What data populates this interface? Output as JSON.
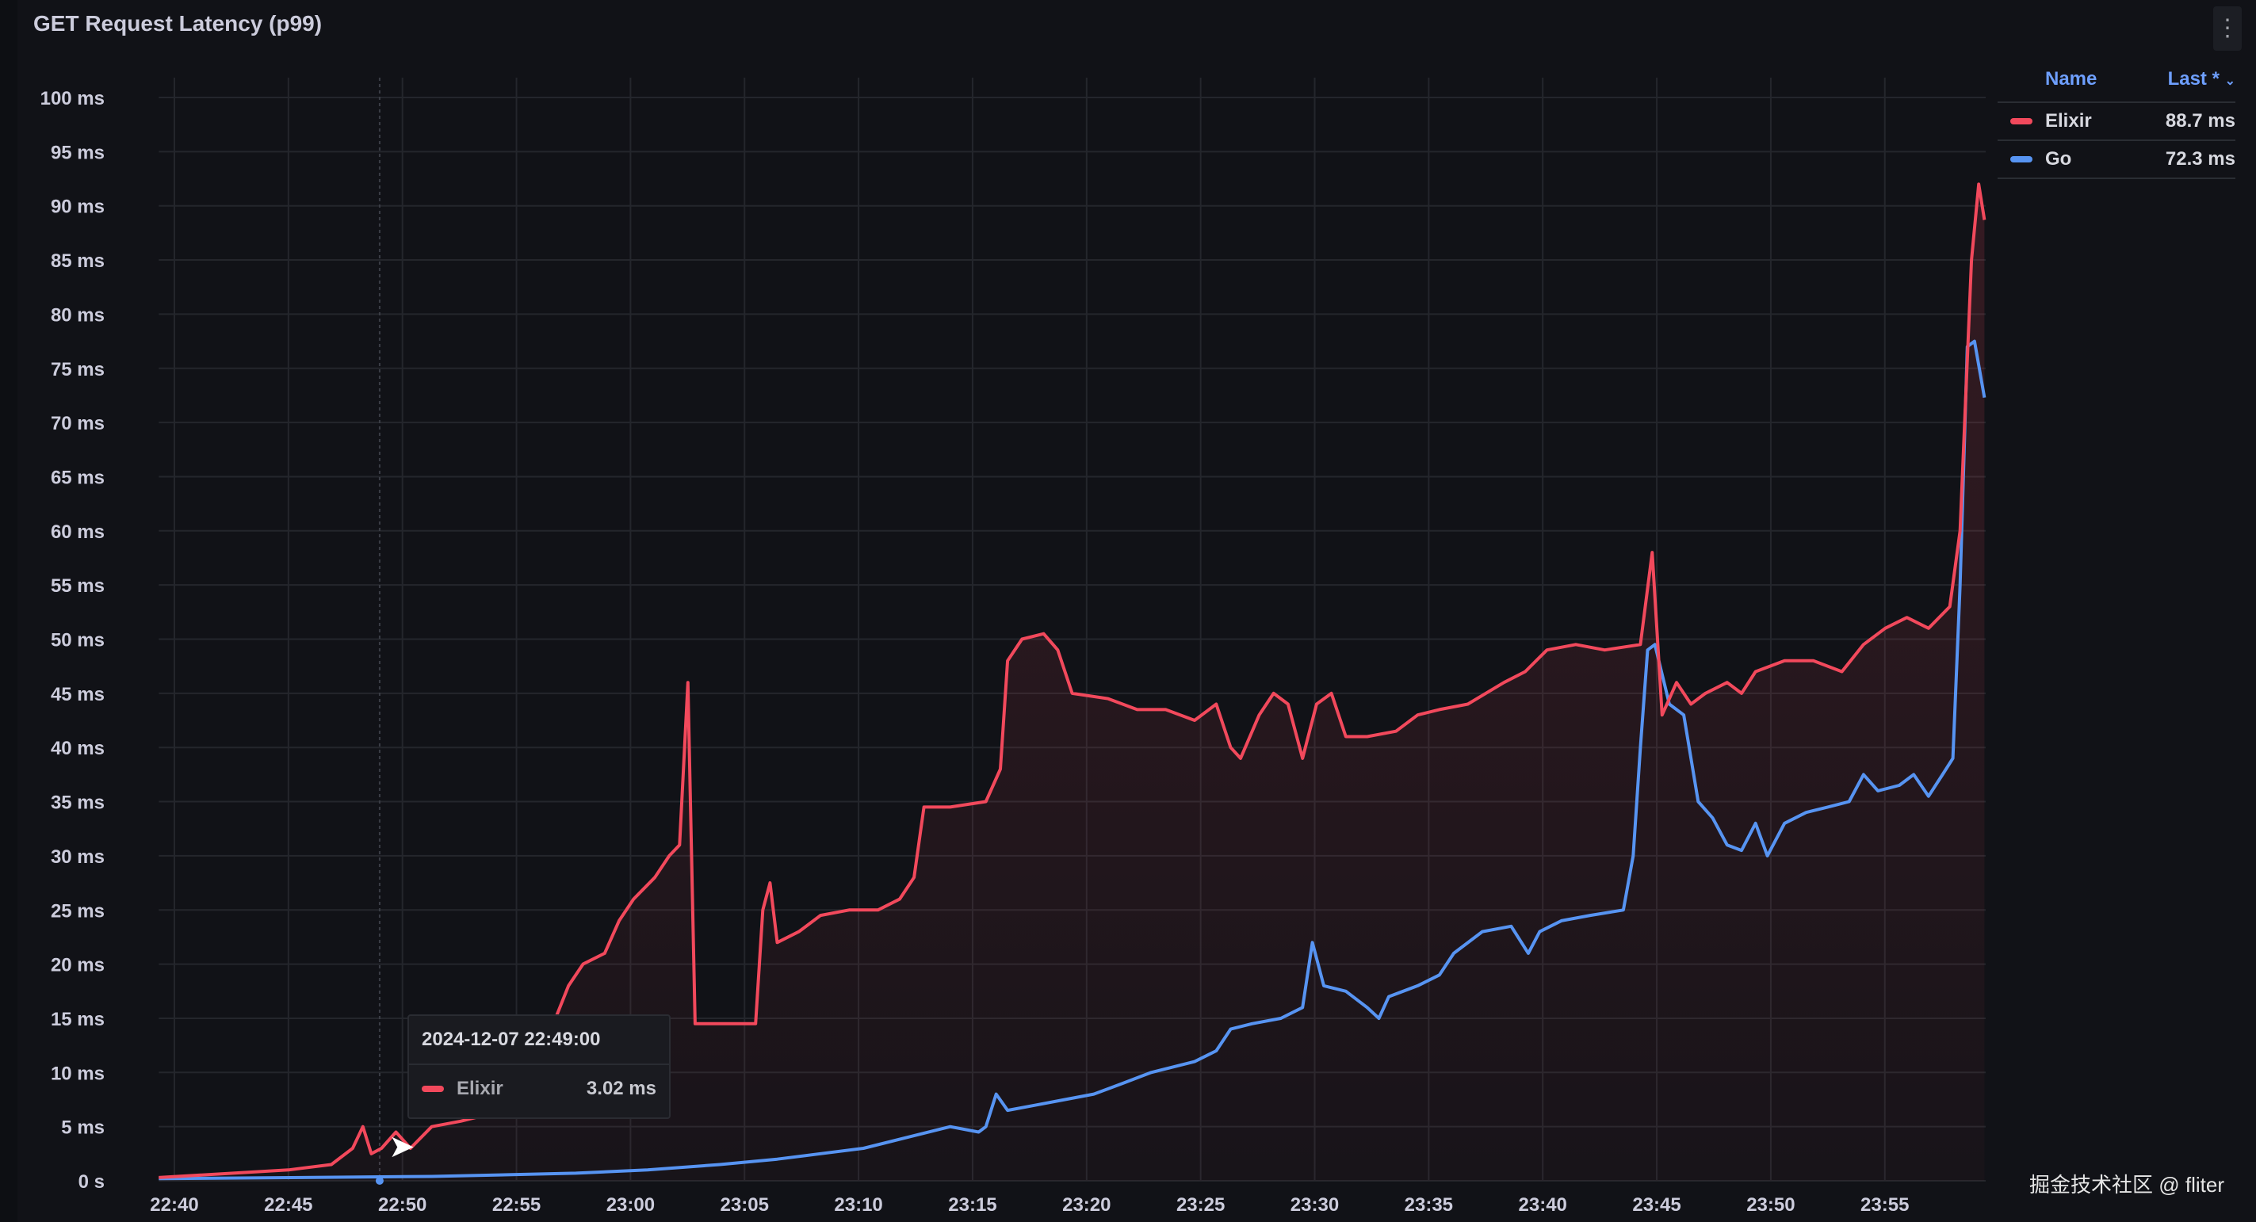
{
  "panel": {
    "title": "GET Request Latency (p99)",
    "menu_icon": "kebab-menu-icon"
  },
  "legend": {
    "header_name": "Name",
    "header_last": "Last *",
    "sort_icon": "chevron-down-icon",
    "rows": [
      {
        "name": "Elixir",
        "value": "88.7 ms",
        "color": "#f2495c"
      },
      {
        "name": "Go",
        "value": "72.3 ms",
        "color": "#5794f2"
      }
    ]
  },
  "tooltip": {
    "time": "2024-12-07 22:49:00",
    "series": "Elixir",
    "value": "3.02 ms",
    "color": "#f2495c"
  },
  "watermark": "掘金技术社区 @ fliter",
  "chart_data": {
    "type": "line",
    "title": "GET Request Latency (p99)",
    "xlabel": "",
    "ylabel": "",
    "x_ticks": [
      "22:40",
      "22:45",
      "22:50",
      "22:55",
      "23:00",
      "23:05",
      "23:10",
      "23:15",
      "23:20",
      "23:25",
      "23:30",
      "23:35",
      "23:40",
      "23:45",
      "23:50",
      "23:55"
    ],
    "y_ticks": [
      "0 s",
      "5 ms",
      "10 ms",
      "15 ms",
      "20 ms",
      "25 ms",
      "30 ms",
      "35 ms",
      "40 ms",
      "45 ms",
      "50 ms",
      "55 ms",
      "60 ms",
      "65 ms",
      "70 ms",
      "75 ms",
      "80 ms",
      "85 ms",
      "90 ms",
      "95 ms",
      "100 ms"
    ],
    "ylim": [
      0,
      100
    ],
    "xlim": [
      "22:39:19",
      "23:59:22"
    ],
    "grid": true,
    "legend_placement": "right",
    "crosshair_time": "22:49:00",
    "series": [
      {
        "name": "Elixir",
        "color": "#f2495c",
        "fill": true,
        "points": [
          [
            "22:39:19",
            0.3
          ],
          [
            "22:45:00",
            1
          ],
          [
            "22:46:53",
            1.5
          ],
          [
            "22:47:49",
            3
          ],
          [
            "22:48:16",
            5
          ],
          [
            "22:48:38",
            2.5
          ],
          [
            "22:49:05",
            3
          ],
          [
            "22:49:43",
            4.5
          ],
          [
            "22:50:21",
            3
          ],
          [
            "22:51:17",
            5
          ],
          [
            "22:52:33",
            5.5
          ],
          [
            "22:53:30",
            6
          ],
          [
            "22:54:08",
            8
          ],
          [
            "22:55:05",
            11
          ],
          [
            "22:56:20",
            13
          ],
          [
            "22:57:17",
            18
          ],
          [
            "22:57:55",
            20
          ],
          [
            "22:58:52",
            21
          ],
          [
            "22:59:30",
            24
          ],
          [
            "23:00:08",
            26
          ],
          [
            "23:01:04",
            28
          ],
          [
            "23:01:42",
            30
          ],
          [
            "23:02:09",
            31
          ],
          [
            "23:02:31",
            46
          ],
          [
            "23:02:50",
            14.5
          ],
          [
            "23:03:55",
            14.5
          ],
          [
            "23:05:29",
            14.5
          ],
          [
            "23:05:48",
            25
          ],
          [
            "23:06:07",
            27.5
          ],
          [
            "23:06:26",
            22
          ],
          [
            "23:07:23",
            23
          ],
          [
            "23:08:20",
            24.5
          ],
          [
            "23:09:35",
            25
          ],
          [
            "23:10:51",
            25
          ],
          [
            "23:11:48",
            26
          ],
          [
            "23:12:26",
            28
          ],
          [
            "23:12:52",
            34.5
          ],
          [
            "23:14:01",
            34.5
          ],
          [
            "23:15:35",
            35
          ],
          [
            "23:16:13",
            38
          ],
          [
            "23:16:32",
            48
          ],
          [
            "23:17:10",
            50
          ],
          [
            "23:18:07",
            50.5
          ],
          [
            "23:18:44",
            49
          ],
          [
            "23:19:22",
            45
          ],
          [
            "23:20:57",
            44.5
          ],
          [
            "23:22:13",
            43.5
          ],
          [
            "23:23:28",
            43.5
          ],
          [
            "23:24:44",
            42.5
          ],
          [
            "23:25:41",
            44
          ],
          [
            "23:26:19",
            40
          ],
          [
            "23:26:45",
            39
          ],
          [
            "23:27:34",
            43
          ],
          [
            "23:28:12",
            45
          ],
          [
            "23:28:50",
            44
          ],
          [
            "23:29:28",
            39
          ],
          [
            "23:30:05",
            44
          ],
          [
            "23:30:44",
            45
          ],
          [
            "23:31:22",
            41
          ],
          [
            "23:32:18",
            41
          ],
          [
            "23:33:34",
            41.5
          ],
          [
            "23:34:31",
            43
          ],
          [
            "23:35:28",
            43.5
          ],
          [
            "23:36:43",
            44
          ],
          [
            "23:38:18",
            46
          ],
          [
            "23:39:14",
            47
          ],
          [
            "23:40:11",
            49
          ],
          [
            "23:41:27",
            49.5
          ],
          [
            "23:42:43",
            49
          ],
          [
            "23:44:17",
            49.5
          ],
          [
            "23:44:48",
            58
          ],
          [
            "23:45:14",
            43
          ],
          [
            "23:45:52",
            46
          ],
          [
            "23:46:30",
            44
          ],
          [
            "23:47:08",
            45
          ],
          [
            "23:48:05",
            46
          ],
          [
            "23:48:43",
            45
          ],
          [
            "23:49:20",
            47
          ],
          [
            "23:50:36",
            48
          ],
          [
            "23:51:52",
            48
          ],
          [
            "23:53:07",
            47
          ],
          [
            "23:54:04",
            49.5
          ],
          [
            "23:55:01",
            51
          ],
          [
            "23:55:58",
            52
          ],
          [
            "23:56:55",
            51
          ],
          [
            "23:57:51",
            53
          ],
          [
            "23:58:18",
            60
          ],
          [
            "23:58:48",
            85
          ],
          [
            "23:59:07",
            92
          ],
          [
            "23:59:22",
            88.7
          ]
        ]
      },
      {
        "name": "Go",
        "color": "#5794f2",
        "fill": false,
        "points": [
          [
            "22:39:19",
            0.2
          ],
          [
            "22:51:17",
            0.4
          ],
          [
            "22:57:36",
            0.7
          ],
          [
            "23:00:45",
            1
          ],
          [
            "23:03:55",
            1.5
          ],
          [
            "23:06:26",
            2
          ],
          [
            "23:08:20",
            2.5
          ],
          [
            "23:10:13",
            3
          ],
          [
            "23:12:07",
            4
          ],
          [
            "23:14:01",
            5
          ],
          [
            "23:15:16",
            4.5
          ],
          [
            "23:15:35",
            5
          ],
          [
            "23:16:02",
            8
          ],
          [
            "23:16:32",
            6.5
          ],
          [
            "23:17:48",
            7
          ],
          [
            "23:19:03",
            7.5
          ],
          [
            "23:20:19",
            8
          ],
          [
            "23:21:35",
            9
          ],
          [
            "23:22:50",
            10
          ],
          [
            "23:24:44",
            11
          ],
          [
            "23:25:41",
            12
          ],
          [
            "23:26:19",
            14
          ],
          [
            "23:27:15",
            14.5
          ],
          [
            "23:28:31",
            15
          ],
          [
            "23:29:28",
            16
          ],
          [
            "23:29:54",
            22
          ],
          [
            "23:30:24",
            18
          ],
          [
            "23:31:22",
            17.5
          ],
          [
            "23:32:18",
            16
          ],
          [
            "23:32:49",
            15
          ],
          [
            "23:33:15",
            17
          ],
          [
            "23:34:31",
            18
          ],
          [
            "23:35:28",
            19
          ],
          [
            "23:36:06",
            21
          ],
          [
            "23:37:21",
            23
          ],
          [
            "23:38:37",
            23.5
          ],
          [
            "23:39:22",
            21
          ],
          [
            "23:39:52",
            23
          ],
          [
            "23:40:49",
            24
          ],
          [
            "23:42:05",
            24.5
          ],
          [
            "23:43:32",
            25
          ],
          [
            "23:43:58",
            30
          ],
          [
            "23:44:17",
            40
          ],
          [
            "23:44:36",
            49
          ],
          [
            "23:44:55",
            49.5
          ],
          [
            "23:45:33",
            44
          ],
          [
            "23:46:11",
            43
          ],
          [
            "23:46:49",
            35
          ],
          [
            "23:47:27",
            33.5
          ],
          [
            "23:48:05",
            31
          ],
          [
            "23:48:43",
            30.5
          ],
          [
            "23:49:20",
            33
          ],
          [
            "23:49:51",
            30
          ],
          [
            "23:50:36",
            33
          ],
          [
            "23:51:33",
            34
          ],
          [
            "23:52:30",
            34.5
          ],
          [
            "23:53:26",
            35
          ],
          [
            "23:54:04",
            37.5
          ],
          [
            "23:54:42",
            36
          ],
          [
            "23:55:38",
            36.5
          ],
          [
            "23:56:16",
            37.5
          ],
          [
            "23:56:55",
            35.5
          ],
          [
            "23:57:32",
            37.5
          ],
          [
            "23:57:59",
            39
          ],
          [
            "23:58:18",
            55
          ],
          [
            "23:58:37",
            77
          ],
          [
            "23:58:56",
            77.5
          ],
          [
            "23:59:22",
            72.3
          ]
        ]
      }
    ]
  }
}
